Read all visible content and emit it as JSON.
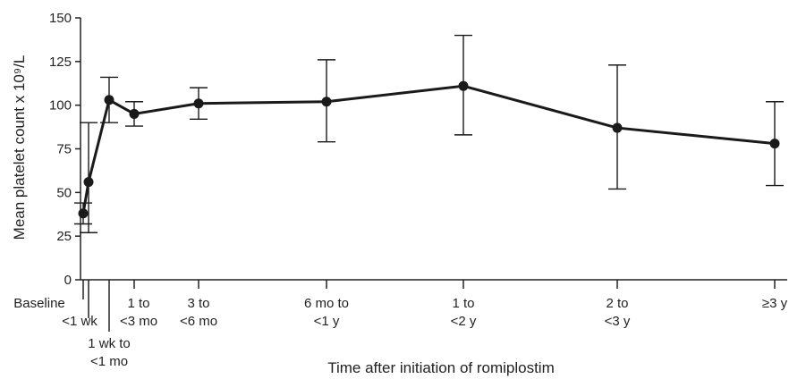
{
  "chart_data": {
    "type": "line",
    "xlabel": "Time after initiation of romiplostim",
    "ylabel": "Mean platelet count x 10⁹/L",
    "ylim": [
      0,
      150
    ],
    "yticks": [
      "0",
      "25",
      "50",
      "75",
      "100",
      "125",
      "150"
    ],
    "grid": false,
    "categories": [
      [
        "Baseline"
      ],
      [
        "<1 wk"
      ],
      [
        "1 wk to",
        "<1 mo"
      ],
      [
        "1 to",
        "<3 mo"
      ],
      [
        "3 to",
        "<6 mo"
      ],
      [
        "6 mo to",
        "<1 y"
      ],
      [
        "1 to",
        "<2 y"
      ],
      [
        "2 to",
        "<3 y"
      ],
      [
        "≥3 y"
      ]
    ],
    "series": [
      {
        "values": [
          38,
          56,
          103,
          95,
          101,
          102,
          111,
          87,
          78
        ],
        "error_low": [
          32,
          27,
          90,
          88,
          92,
          79,
          83,
          52,
          54
        ],
        "error_high": [
          44,
          90,
          116,
          102,
          110,
          126,
          140,
          123,
          102
        ]
      }
    ],
    "colors": {
      "line": "#1a1a1a",
      "marker": "#1a1a1a",
      "axis": "#222222"
    }
  }
}
